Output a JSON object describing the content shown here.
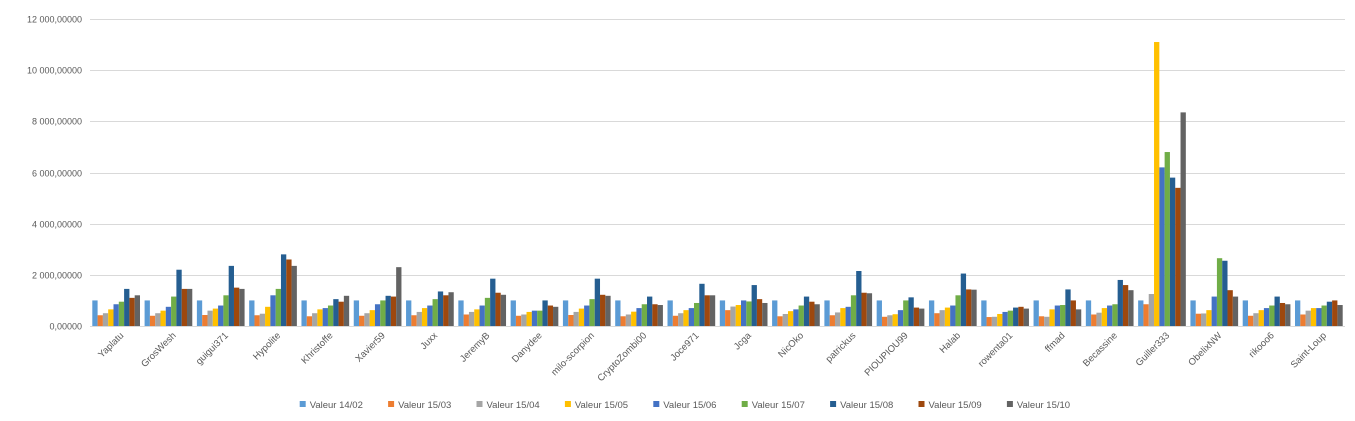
{
  "chart_data": {
    "type": "bar",
    "title": "",
    "xlabel": "",
    "ylabel": "",
    "ylim": [
      0,
      12000
    ],
    "y_ticks": [
      "0,00000",
      "2 000,00000",
      "4 000,00000",
      "6 000,00000",
      "8 000,00000",
      "10 000,00000",
      "12 000,00000"
    ],
    "grid": true,
    "legend_position": "bottom",
    "categories": [
      "Yaplatu",
      "GrosWesh",
      "guigui371",
      "Hypolite",
      "Khristoffe",
      "Xavier59",
      "Juxx",
      "JeremyB",
      "Danydee",
      "milo-scorpion",
      "CryptoZombi00",
      "Joce971",
      "Jcga",
      "NicOko",
      "patrickus",
      "PIOUPIOU99",
      "Halab",
      "rowenta01",
      "ffmad",
      "Becassine",
      "Guiller333",
      "ObelixNW",
      "rikooo6",
      "Saint-Loup"
    ],
    "series": [
      {
        "name": "Valeur 14/02",
        "color": "#5b9bd5",
        "values": [
          1000,
          1000,
          1000,
          1000,
          1000,
          1000,
          1000,
          1000,
          1000,
          1000,
          1000,
          1000,
          1000,
          1000,
          1000,
          1000,
          1000,
          1000,
          1000,
          1000,
          1000,
          1000,
          1000,
          1000
        ]
      },
      {
        "name": "Valeur 15/03",
        "color": "#ed7d31",
        "values": [
          420,
          400,
          430,
          420,
          380,
          400,
          420,
          450,
          400,
          430,
          380,
          400,
          620,
          380,
          420,
          360,
          500,
          350,
          380,
          450,
          850,
          480,
          400,
          450
        ]
      },
      {
        "name": "Valeur 15/04",
        "color": "#a5a5a5",
        "values": [
          500,
          500,
          600,
          480,
          500,
          500,
          550,
          550,
          450,
          550,
          450,
          500,
          760,
          470,
          530,
          420,
          620,
          360,
          360,
          520,
          1250,
          490,
          500,
          600
        ]
      },
      {
        "name": "Valeur 15/05",
        "color": "#ffc000",
        "values": [
          650,
          600,
          680,
          750,
          650,
          620,
          700,
          650,
          550,
          680,
          560,
          620,
          820,
          580,
          700,
          460,
          720,
          470,
          650,
          700,
          11100,
          620,
          620,
          700
        ]
      },
      {
        "name": "Valeur 15/06",
        "color": "#4472c4",
        "values": [
          850,
          750,
          800,
          1200,
          700,
          850,
          800,
          800,
          600,
          800,
          700,
          700,
          1000,
          650,
          750,
          620,
          800,
          550,
          800,
          800,
          6200,
          1150,
          700,
          700
        ]
      },
      {
        "name": "Valeur 15/07",
        "color": "#70ad47",
        "values": [
          950,
          1150,
          1200,
          1450,
          800,
          1000,
          1050,
          1100,
          600,
          1050,
          850,
          900,
          960,
          800,
          1200,
          1000,
          1200,
          600,
          820,
          850,
          6800,
          2650,
          800,
          800
        ]
      },
      {
        "name": "Valeur 15/08",
        "color": "#255e91",
        "values": [
          1450,
          2200,
          2350,
          2800,
          1050,
          1180,
          1350,
          1850,
          1000,
          1850,
          1150,
          1650,
          1600,
          1150,
          2150,
          1120,
          2050,
          720,
          1430,
          1800,
          5800,
          2550,
          1150,
          950
        ]
      },
      {
        "name": "Valeur 15/09",
        "color": "#9e480e",
        "values": [
          1100,
          1450,
          1500,
          2600,
          950,
          1150,
          1200,
          1300,
          800,
          1220,
          850,
          1200,
          1050,
          950,
          1300,
          720,
          1430,
          750,
          1000,
          1600,
          5400,
          1400,
          900,
          1000
        ]
      },
      {
        "name": "Valeur 15/10",
        "color": "#636363",
        "values": [
          1200,
          1450,
          1450,
          2350,
          1180,
          2300,
          1320,
          1220,
          750,
          1180,
          820,
          1200,
          900,
          850,
          1280,
          680,
          1420,
          680,
          650,
          1400,
          8350,
          1150,
          850,
          820
        ]
      }
    ]
  }
}
